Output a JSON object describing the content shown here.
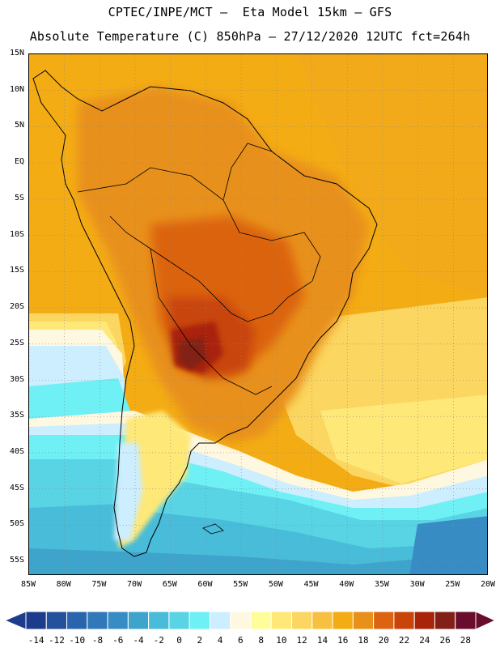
{
  "title": {
    "line1": "CPTEC/INPE/MCT –  Eta Model 15km – GFS",
    "line2": "Absolute Temperature (C) 850hPa – 27/12/2020 12UTC fct=264h"
  },
  "map": {
    "lat_ticks": [
      "15N",
      "10N",
      "5N",
      "EQ",
      "5S",
      "10S",
      "15S",
      "20S",
      "25S",
      "30S",
      "35S",
      "40S",
      "45S",
      "50S",
      "55S"
    ],
    "lon_ticks": [
      "85W",
      "80W",
      "75W",
      "70W",
      "65W",
      "60W",
      "55W",
      "50W",
      "45W",
      "40W",
      "35W",
      "30W",
      "25W",
      "20W"
    ],
    "lat_range": [
      15,
      -57
    ],
    "lon_range": [
      -85,
      -20
    ]
  },
  "legend": {
    "labels": [
      "-14",
      "-12",
      "-10",
      "-8",
      "-6",
      "-4",
      "-2",
      "0",
      "2",
      "4",
      "6",
      "8",
      "10",
      "12",
      "14",
      "16",
      "18",
      "20",
      "22",
      "24",
      "26",
      "28"
    ],
    "colors": [
      "#1e3c8c",
      "#24519c",
      "#2a64ac",
      "#3078b8",
      "#388cc4",
      "#3ea4cc",
      "#48bcd8",
      "#58d4e4",
      "#6ef0f4",
      "#cceefe",
      "#fff8e0",
      "#fffc9a",
      "#fde878",
      "#fbd660",
      "#f8c040",
      "#f4ac14",
      "#e8901a",
      "#dc6410",
      "#c84408",
      "#a8240a",
      "#822018",
      "#6a0c2c"
    ]
  }
}
